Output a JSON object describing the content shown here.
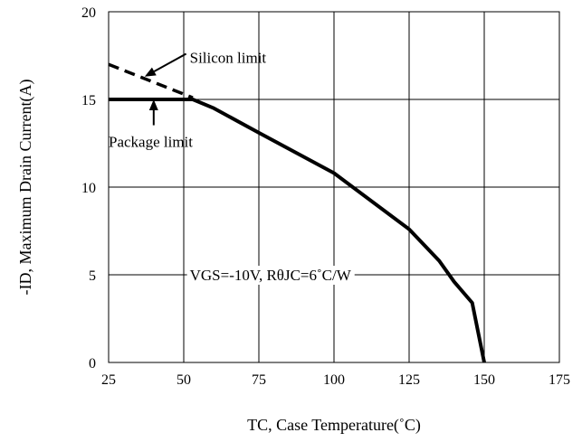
{
  "chart_data": {
    "type": "line",
    "xlabel": "TC, Case Temperature(˚C)",
    "ylabel": "-ID, Maximum Drain Current(A)",
    "xlim": [
      25,
      175
    ],
    "ylim": [
      0,
      20
    ],
    "x_ticks": [
      25,
      50,
      75,
      100,
      125,
      150,
      175
    ],
    "y_ticks": [
      0,
      5,
      10,
      15,
      20
    ],
    "grid": true,
    "series": [
      {
        "style": "solid",
        "x": [
          25,
          53,
          60,
          75,
          100,
          125,
          135,
          140,
          146,
          150
        ],
        "y": [
          15,
          15,
          14.5,
          13.1,
          10.8,
          7.6,
          5.8,
          4.6,
          3.4,
          0
        ]
      },
      {
        "style": "dashed",
        "x": [
          25,
          53
        ],
        "y": [
          17,
          15.1
        ]
      }
    ],
    "annotations": [
      {
        "text": "Silicon limit",
        "x": 52,
        "y": 17.4,
        "arrow_to": [
          37,
          16.3
        ]
      },
      {
        "text": "Package limit",
        "x": 25,
        "y": 12.6,
        "arrow_to": [
          40,
          15
        ]
      },
      {
        "text": "VGS=-10V, RθJC=6˚C/W",
        "x": 52,
        "y": 5
      }
    ]
  }
}
